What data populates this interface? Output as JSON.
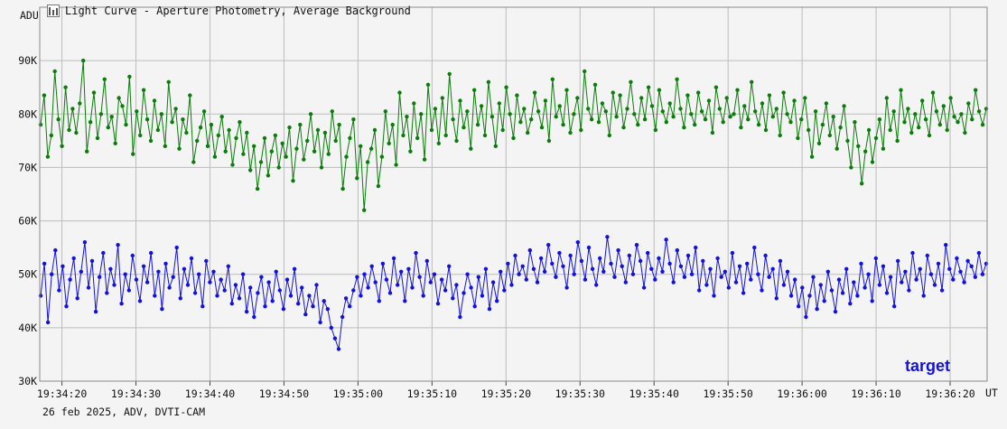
{
  "window": {
    "title": "Light Curve - Aperture Photometry, Average Background",
    "footer": "26 feb 2025, ADV, DVTI-CAM"
  },
  "chart_data": {
    "type": "scatter",
    "title": "Light Curve - Aperture Photometry, Average Background",
    "ylabel": "ADU",
    "xlabel": "UT",
    "ylim": [
      30000,
      100000
    ],
    "y_ticks": [
      {
        "value": 30000,
        "label": "30K"
      },
      {
        "value": 40000,
        "label": "40K"
      },
      {
        "value": 50000,
        "label": "50K"
      },
      {
        "value": 60000,
        "label": "60K"
      },
      {
        "value": 70000,
        "label": "70K"
      },
      {
        "value": 80000,
        "label": "80K"
      },
      {
        "value": 90000,
        "label": "90K"
      }
    ],
    "x_range": [
      "19:34:17",
      "19:36:25"
    ],
    "x_ticks": [
      "19:34:20",
      "19:34:30",
      "19:34:40",
      "19:34:50",
      "19:35:00",
      "19:35:10",
      "19:35:20",
      "19:35:30",
      "19:35:40",
      "19:35:50",
      "19:36:00",
      "19:36:10",
      "19:36:20"
    ],
    "grid": true,
    "legend": "bottom-right",
    "series": [
      {
        "name": "",
        "color": "#0a7d0a",
        "values": [
          78000,
          83500,
          72000,
          76000,
          88000,
          79000,
          74000,
          85000,
          77000,
          81000,
          76500,
          82000,
          90000,
          73000,
          78500,
          84000,
          75500,
          80000,
          86500,
          77500,
          79500,
          74500,
          83000,
          81500,
          78000,
          87000,
          72500,
          80500,
          76000,
          84500,
          79000,
          75000,
          82500,
          77000,
          80000,
          74000,
          86000,
          78500,
          81000,
          73500,
          79000,
          76500,
          83500,
          71000,
          75000,
          77500,
          80500,
          74000,
          78000,
          72000,
          76000,
          79500,
          73000,
          77000,
          70500,
          75500,
          78500,
          72500,
          76500,
          69500,
          74000,
          66000,
          71000,
          75500,
          68500,
          73000,
          76000,
          70000,
          74500,
          72000,
          77500,
          67500,
          73500,
          78000,
          71500,
          75000,
          80000,
          73000,
          77000,
          70000,
          76500,
          72500,
          80500,
          75000,
          78000,
          66000,
          72000,
          75500,
          79000,
          68000,
          74000,
          62000,
          71000,
          73500,
          77000,
          66500,
          72000,
          80500,
          74500,
          78000,
          70500,
          84000,
          76000,
          79500,
          73000,
          82000,
          75500,
          80000,
          71500,
          85500,
          77000,
          81000,
          74500,
          83000,
          76000,
          87500,
          79000,
          75000,
          82500,
          77500,
          80500,
          73500,
          84500,
          78000,
          81500,
          76000,
          86000,
          79500,
          74000,
          82000,
          77000,
          85000,
          80000,
          75500,
          83500,
          78500,
          81000,
          76500,
          79000,
          84000,
          80500,
          77500,
          82500,
          75000,
          86500,
          79500,
          81500,
          78000,
          84500,
          76500,
          80000,
          83000,
          77000,
          88000,
          81000,
          79000,
          85500,
          78500,
          82000,
          80500,
          76000,
          84000,
          79500,
          83500,
          77500,
          81000,
          86000,
          80000,
          78000,
          83000,
          79000,
          85000,
          81500,
          77000,
          84500,
          80500,
          78500,
          82000,
          79500,
          86500,
          81000,
          77500,
          83500,
          80000,
          78000,
          84000,
          80500,
          79000,
          82500,
          76500,
          85000,
          81000,
          78500,
          83000,
          79500,
          80000,
          84500,
          77500,
          81500,
          79000,
          86000,
          80500,
          78000,
          82000,
          77000,
          83500,
          79500,
          81000,
          76000,
          84000,
          80000,
          78500,
          82500,
          75500,
          79000,
          83000,
          77000,
          72000,
          80500,
          74500,
          78000,
          82000,
          76000,
          79500,
          73500,
          77500,
          81500,
          75000,
          70000,
          78500,
          74000,
          67000,
          73000,
          77000,
          71000,
          75500,
          79000,
          73500,
          83000,
          77000,
          80500,
          75000,
          84500,
          78500,
          81000,
          76500,
          80000,
          77500,
          82500,
          79000,
          76000,
          84000,
          80500,
          78000,
          81500,
          77000,
          83000,
          79500,
          78500,
          80000,
          76500,
          82000,
          79000,
          84500,
          80500,
          78000,
          81000
        ]
      },
      {
        "name": "target",
        "color": "#1212e0",
        "values": [
          46000,
          52000,
          41000,
          50000,
          54500,
          47000,
          51500,
          44000,
          49000,
          53000,
          45500,
          50500,
          56000,
          47500,
          52500,
          43000,
          49500,
          54000,
          46500,
          51000,
          48000,
          55500,
          44500,
          50000,
          47000,
          53500,
          49000,
          45000,
          51500,
          48500,
          54000,
          46000,
          50500,
          43500,
          52000,
          47500,
          49500,
          55000,
          45500,
          51000,
          48000,
          53000,
          46500,
          50000,
          44000,
          52500,
          48500,
          50500,
          46000,
          49000,
          47000,
          51500,
          44500,
          48000,
          45500,
          50000,
          43000,
          47500,
          42000,
          46500,
          49500,
          44000,
          48500,
          45000,
          50500,
          47000,
          43500,
          49000,
          46000,
          51000,
          44500,
          47500,
          42500,
          46000,
          44000,
          48000,
          41000,
          45000,
          43500,
          40000,
          38000,
          36000,
          42000,
          45500,
          44000,
          47000,
          49500,
          46000,
          50000,
          47500,
          51500,
          48500,
          45000,
          52000,
          49000,
          46500,
          53000,
          48000,
          50500,
          45000,
          51000,
          47500,
          54000,
          49500,
          46000,
          52500,
          48500,
          50000,
          44500,
          49000,
          47000,
          51500,
          45500,
          48000,
          42000,
          46500,
          50000,
          47500,
          44000,
          49500,
          46000,
          51000,
          43500,
          48500,
          45000,
          50500,
          47000,
          52000,
          48000,
          53500,
          50000,
          51500,
          49000,
          54500,
          51000,
          48500,
          53000,
          50500,
          55500,
          52000,
          49500,
          54000,
          51500,
          47500,
          53500,
          50000,
          56000,
          52500,
          49000,
          55000,
          51000,
          48000,
          53000,
          50500,
          57000,
          52000,
          49500,
          54500,
          51500,
          48500,
          53500,
          50000,
          55500,
          52500,
          47500,
          54000,
          51000,
          49000,
          53000,
          50500,
          56500,
          52000,
          48500,
          54500,
          51500,
          49500,
          53500,
          50000,
          55000,
          47000,
          52500,
          48000,
          51000,
          46000,
          53000,
          49500,
          50500,
          47500,
          54000,
          48500,
          51500,
          46500,
          52000,
          49000,
          55000,
          50000,
          47000,
          53500,
          49500,
          51000,
          45500,
          52500,
          48000,
          50500,
          46000,
          49000,
          44000,
          47500,
          42000,
          46000,
          49500,
          43500,
          48000,
          45000,
          50500,
          47000,
          43000,
          49000,
          46500,
          51000,
          44500,
          48500,
          46000,
          52000,
          47500,
          50000,
          45000,
          53000,
          48000,
          51500,
          46500,
          49500,
          44000,
          52500,
          48500,
          50500,
          47000,
          54000,
          49000,
          51000,
          46000,
          53500,
          50000,
          48000,
          52000,
          47000,
          55500,
          51000,
          49000,
          53000,
          50500,
          48500,
          52500,
          51500,
          49500,
          54000,
          50000,
          52000
        ]
      }
    ]
  }
}
